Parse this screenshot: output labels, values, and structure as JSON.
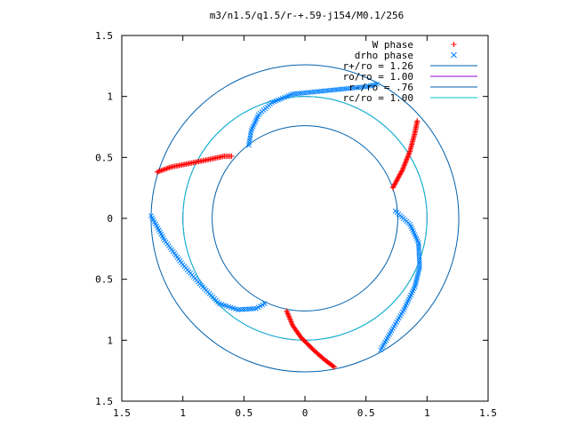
{
  "chart_data": {
    "type": "scatter",
    "title": "m3/n1.5/q1.5/r-+.59-j154/M0.1/256",
    "xlim": [
      -1.5,
      1.5
    ],
    "ylim": [
      -1.5,
      1.5
    ],
    "x_ticks": [
      -1.5,
      -1,
      -0.5,
      0,
      0.5,
      1,
      1.5
    ],
    "y_ticks": [
      -1.5,
      -1,
      -0.5,
      0,
      0.5,
      1,
      1.5
    ],
    "x_tick_labels": [
      "1.5",
      "1",
      "0.5",
      "0",
      "0.5",
      "1",
      "1.5"
    ],
    "y_tick_labels": [
      "1.5",
      "1",
      "0.5",
      "0",
      "0.5",
      "1",
      "1.5"
    ],
    "grid": false,
    "legend_position": "top-right",
    "series": [
      {
        "name": "W phase",
        "kind": "points",
        "marker": "plus",
        "color": "#ff0000",
        "arms": [
          [
            [
              -1.21,
              0.38
            ],
            [
              -1.1,
              0.42
            ],
            [
              -0.95,
              0.45
            ],
            [
              -0.8,
              0.48
            ],
            [
              -0.66,
              0.51
            ],
            [
              -0.6,
              0.51
            ]
          ],
          [
            [
              0.72,
              0.25
            ],
            [
              0.8,
              0.4
            ],
            [
              0.86,
              0.55
            ],
            [
              0.9,
              0.7
            ],
            [
              0.92,
              0.8
            ]
          ],
          [
            [
              -0.15,
              -0.76
            ],
            [
              -0.1,
              -0.88
            ],
            [
              -0.03,
              -0.98
            ],
            [
              0.07,
              -1.08
            ],
            [
              0.16,
              -1.16
            ],
            [
              0.24,
              -1.22
            ]
          ]
        ]
      },
      {
        "name": "drho phase",
        "kind": "points",
        "marker": "cross",
        "color": "#0080ff",
        "arms": [
          [
            [
              -1.26,
              0.02
            ],
            [
              -1.15,
              -0.18
            ],
            [
              -1.0,
              -0.38
            ],
            [
              -0.85,
              -0.55
            ],
            [
              -0.7,
              -0.7
            ],
            [
              -0.55,
              -0.75
            ],
            [
              -0.4,
              -0.74
            ],
            [
              -0.33,
              -0.7
            ]
          ],
          [
            [
              -0.46,
              0.6
            ],
            [
              -0.44,
              0.72
            ],
            [
              -0.38,
              0.85
            ],
            [
              -0.27,
              0.95
            ],
            [
              -0.1,
              1.02
            ],
            [
              0.1,
              1.04
            ],
            [
              0.3,
              1.06
            ],
            [
              0.5,
              1.08
            ],
            [
              0.59,
              1.1
            ]
          ],
          [
            [
              0.74,
              0.06
            ],
            [
              0.86,
              -0.05
            ],
            [
              0.93,
              -0.2
            ],
            [
              0.94,
              -0.4
            ],
            [
              0.9,
              -0.56
            ],
            [
              0.81,
              -0.75
            ],
            [
              0.71,
              -0.92
            ],
            [
              0.62,
              -1.08
            ]
          ]
        ]
      },
      {
        "name": "r+/ro = 1.26",
        "kind": "circle",
        "radius": 1.26,
        "color": "#0060ad"
      },
      {
        "name": "ro/ro = 1.00",
        "kind": "circle",
        "radius": 1.0,
        "color": "#9400d3"
      },
      {
        "name": "r-/ro = .76",
        "kind": "circle",
        "radius": 0.76,
        "color": "#0060ad"
      },
      {
        "name": "rc/ro = 1.00",
        "kind": "circle",
        "radius": 1.0,
        "color": "#00c8d0"
      }
    ]
  }
}
